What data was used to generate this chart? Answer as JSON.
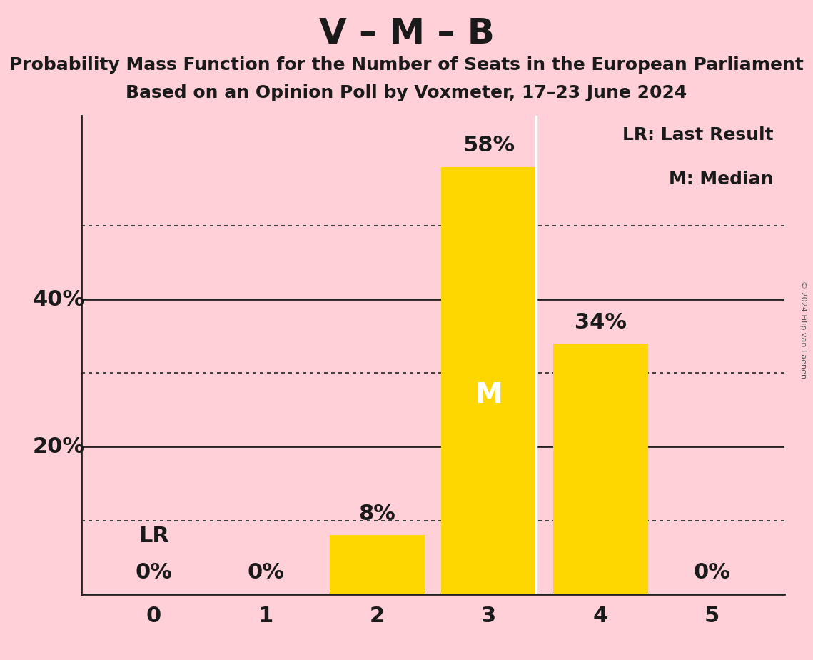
{
  "title": "V – M – B",
  "subtitle1": "Probability Mass Function for the Number of Seats in the European Parliament",
  "subtitle2": "Based on an Opinion Poll by Voxmeter, 17–23 June 2024",
  "copyright": "© 2024 Filip van Laenen",
  "categories": [
    0,
    1,
    2,
    3,
    4,
    5
  ],
  "values": [
    0,
    0,
    8,
    58,
    34,
    0
  ],
  "bar_color": "#FFD700",
  "background_color": "#FFD0D8",
  "text_color": "#1a1a1a",
  "median_bar": 3,
  "median_label": "M",
  "median_label_color": "#FFFFFF",
  "lr_bar": 0,
  "lr_label": "LR",
  "legend_text1": "LR: Last Result",
  "legend_text2": "M: Median",
  "ylim": [
    0,
    65
  ],
  "grid_dotted_at": [
    10,
    30,
    50
  ],
  "grid_solid_at": [
    20,
    40
  ],
  "title_fontsize": 36,
  "subtitle_fontsize": 18,
  "tick_fontsize": 22,
  "legend_fontsize": 18,
  "bar_label_fontsize": 22,
  "median_fontsize": 28
}
